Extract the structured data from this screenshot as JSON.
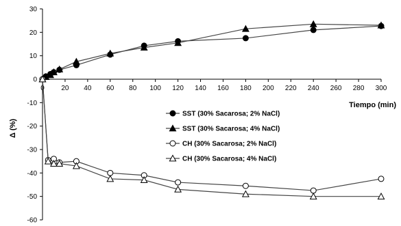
{
  "chart_data": {
    "type": "line",
    "xlabel": "Tiempo (min)",
    "ylabel": "Δ (%)",
    "xlim": [
      0,
      300
    ],
    "ylim": [
      -60,
      30
    ],
    "x_ticks": [
      0,
      20,
      40,
      60,
      80,
      100,
      120,
      140,
      160,
      180,
      200,
      220,
      240,
      260,
      280,
      300
    ],
    "y_ticks": [
      30,
      20,
      10,
      0,
      -10,
      -20,
      -30,
      -40,
      -50,
      -60
    ],
    "grid": false,
    "legend_position": "center-right",
    "series": [
      {
        "name": "SST (30% Sacarosa; 2% NaCl)",
        "marker": "filled-circle",
        "x": [
          0,
          3,
          7,
          10,
          15,
          30,
          60,
          90,
          120,
          180,
          240,
          300
        ],
        "y": [
          0,
          1.2,
          2.2,
          3,
          4,
          6,
          10.5,
          14.3,
          16.2,
          17.5,
          21,
          22.7
        ]
      },
      {
        "name": "SST (30% Sacarosa; 4% NaCl)",
        "marker": "filled-triangle",
        "x": [
          0,
          3,
          7,
          10,
          15,
          30,
          60,
          90,
          120,
          180,
          240,
          300
        ],
        "y": [
          0,
          1,
          1.8,
          3,
          4.2,
          7.5,
          11,
          13.5,
          15.5,
          21.5,
          23.5,
          23
        ]
      },
      {
        "name": "CH (30% Sacarosa; 2% NaCl)",
        "marker": "open-circle",
        "x": [
          0,
          5,
          10,
          15,
          30,
          60,
          90,
          120,
          180,
          240,
          300
        ],
        "y": [
          0,
          -34.5,
          -34,
          -35.5,
          -35,
          -40,
          -41,
          -44,
          -45.5,
          -47.5,
          -42.5
        ]
      },
      {
        "name": "CH (30% Sacarosa; 4% NaCl)",
        "marker": "open-triangle",
        "x": [
          0,
          5,
          10,
          15,
          30,
          60,
          90,
          120,
          180,
          240,
          300
        ],
        "y": [
          0,
          -35,
          -36,
          -36,
          -37,
          -42.5,
          -43,
          -47,
          -49,
          -50,
          -50
        ]
      }
    ]
  }
}
